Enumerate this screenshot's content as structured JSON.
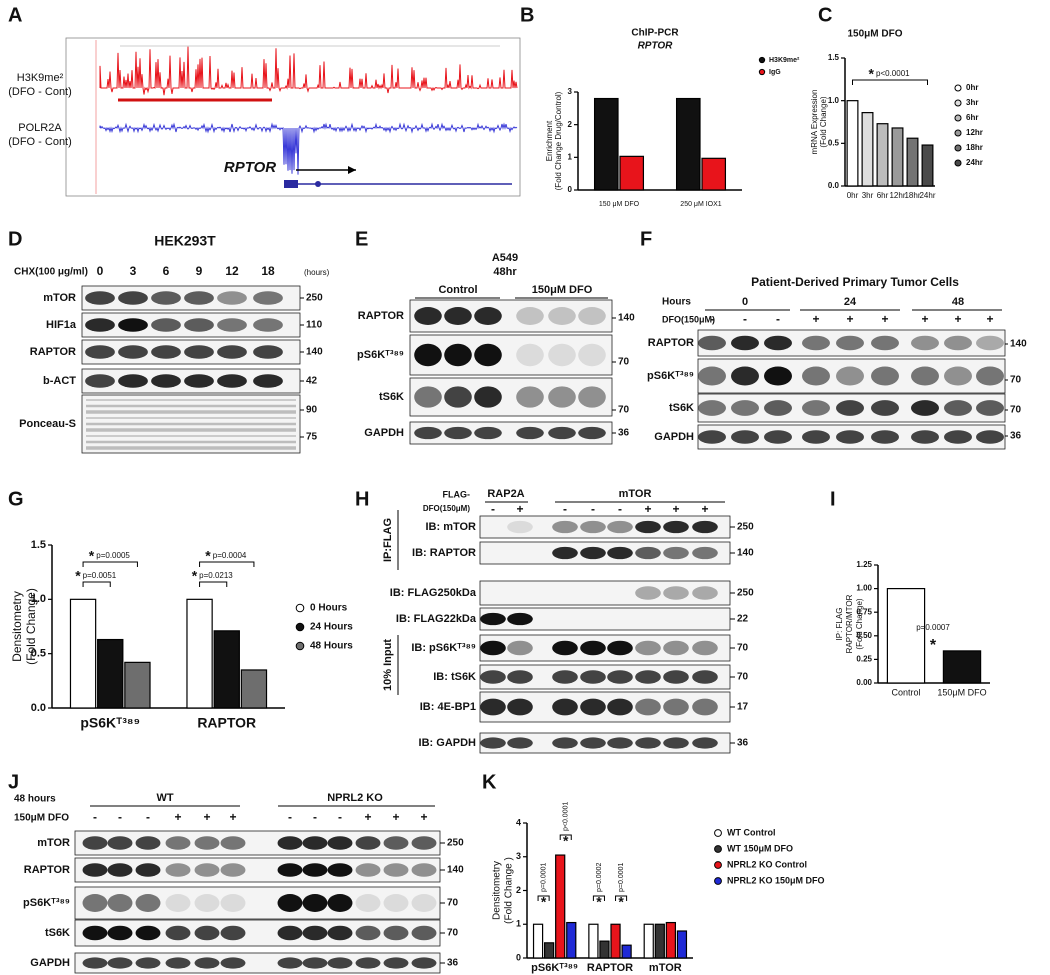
{
  "figure": {
    "panel_letters": [
      "A",
      "B",
      "C",
      "D",
      "E",
      "F",
      "G",
      "H",
      "I",
      "J",
      "K"
    ]
  },
  "track": {
    "tracks": [
      {
        "name": "H3K9me²",
        "sub": "(DFO - Cont)"
      },
      {
        "name": "POLR2A",
        "sub": "(DFO - Cont)"
      }
    ],
    "gene": "RPTOR"
  },
  "blots": [
    {
      "panel": "D",
      "header": [
        "HEK293T",
        "CHX(100 μg/ml)",
        "(hours)"
      ],
      "groups": [],
      "lanes": [
        0,
        3,
        6,
        9,
        12,
        18
      ],
      "rows": [
        "mTOR",
        "HIF1a",
        "RAPTOR",
        "b-ACT",
        "Ponceau-S"
      ],
      "mw": [
        250,
        110,
        140,
        42,
        90,
        75
      ],
      "side": []
    },
    {
      "panel": "E",
      "header": [
        "A549",
        "48hr"
      ],
      "groups": [
        "Control",
        "150μM DFO"
      ],
      "lanes": [],
      "rows": [
        "RAPTOR",
        "pS6Kᵀ³⁸⁹",
        "tS6K",
        "GAPDH"
      ],
      "mw": [
        140,
        70,
        70,
        36
      ],
      "side": []
    },
    {
      "panel": "F",
      "header": [
        "Patient-Derived Primary Tumor Cells",
        "Hours",
        "DFO(150μM)"
      ],
      "groups": [
        0,
        24,
        48
      ],
      "lanes": [
        "-",
        "-",
        "-",
        "+",
        "+",
        "+",
        "+",
        "+",
        "+"
      ],
      "rows": [
        "RAPTOR",
        "pS6Kᵀ³⁸⁹",
        "tS6K",
        "GAPDH"
      ],
      "mw": [
        140,
        70,
        70,
        36
      ],
      "side": []
    },
    {
      "panel": "H",
      "header": [
        "FLAG-",
        "DFO(150μM)"
      ],
      "groups": [
        "RAP2A",
        "mTOR"
      ],
      "lanes": [
        "-",
        "+",
        "-",
        "-",
        "-",
        "+",
        "+",
        "+"
      ],
      "rows": [
        "IB: mTOR",
        "IB: RAPTOR",
        "IB: FLAG250kDa",
        "IB: FLAG22kDa",
        "IB: pS6Kᵀ³⁸⁹",
        "IB: tS6K",
        "IB: 4E-BP1",
        "IB: GAPDH"
      ],
      "mw": [
        250,
        140,
        250,
        22,
        70,
        70,
        17,
        36
      ],
      "side": [
        "IP:FLAG",
        "10% Input"
      ]
    },
    {
      "panel": "J",
      "header": [
        "48 hours",
        "150μM DFO"
      ],
      "groups": [
        "WT",
        "NPRL2 KO"
      ],
      "lanes": [
        "-",
        "-",
        "-",
        "+",
        "+",
        "+",
        "-",
        "-",
        "-",
        "+",
        "+",
        "+"
      ],
      "rows": [
        "mTOR",
        "RAPTOR",
        "pS6Kᵀ³⁸⁹",
        "tS6K",
        "GAPDH"
      ],
      "mw": [
        250,
        140,
        70,
        70,
        36
      ],
      "side": []
    }
  ],
  "chart_data": [
    {
      "type": "bar",
      "title": "ChIP-PCR",
      "subtitle": "RPTOR",
      "y_label": [
        "Enrichment",
        "(Fold Change Drug/Control)"
      ],
      "categories": [
        "150 μM DFO",
        "250 μM IOX1"
      ],
      "series": [
        {
          "name": "H3K9me²",
          "color": "#111111",
          "values": [
            2.8,
            2.8
          ]
        },
        {
          "name": "IgG",
          "color": "#e8141b",
          "values": [
            1.03,
            0.97
          ]
        }
      ],
      "ylim": [
        0,
        3
      ],
      "yticks": [
        0,
        1,
        2,
        3
      ],
      "legend": true,
      "annotations": [],
      "sig_mark": "*"
    },
    {
      "type": "bar",
      "title": "150μM DFO",
      "y_label": [
        "mRNA Expression",
        "(Fold Change)"
      ],
      "categories": [
        "0hr",
        "3hr",
        "6hr",
        "12hr",
        "18hr",
        "24hr"
      ],
      "values": [
        1.0,
        0.86,
        0.73,
        0.68,
        0.56,
        0.48
      ],
      "colors": [
        "#ffffff",
        "#dedede",
        "#bcbcbc",
        "#9a9a9a",
        "#737373",
        "#4a4a4a"
      ],
      "ylim": [
        0,
        1.5
      ],
      "yticks": [
        {
          "value": 0,
          "label": "0.0"
        },
        {
          "value": 0.5,
          "label": "0.5"
        },
        {
          "value": 1,
          "label": "1.0"
        },
        {
          "value": 1.5,
          "label": "1.5"
        }
      ],
      "legend": true,
      "annotations": [
        "p<0.0001"
      ],
      "sig_mark": "*"
    },
    {
      "type": "bar",
      "y_label": [
        "Densitometry",
        "(Fold Change)"
      ],
      "categories": [
        "pS6Kᵀ³⁸⁹",
        "RAPTOR"
      ],
      "series": [
        {
          "name": "0 Hours",
          "color": "#ffffff",
          "values": [
            1.0,
            1.0
          ]
        },
        {
          "name": "24 Hours",
          "color": "#111111",
          "values": [
            0.63,
            0.71
          ]
        },
        {
          "name": "48 Hours",
          "color": "#6e6e6e",
          "values": [
            0.42,
            0.35
          ]
        }
      ],
      "ylim": [
        0,
        1.5
      ],
      "yticks": [
        {
          "value": 0,
          "label": "0.0"
        },
        {
          "value": 0.5,
          "label": "0.5"
        },
        {
          "value": 1,
          "label": "1.0"
        },
        {
          "value": 1.5,
          "label": "1.5"
        }
      ],
      "legend": true,
      "annotations": [
        "p=0.0005",
        "p=0.0051",
        "p=0.0004",
        "p=0.0213"
      ],
      "sig_mark": "*"
    },
    {
      "type": "bar",
      "y_label": [
        "IP: FLAG",
        "RAPTOR/MTOR",
        "(Fold Change)"
      ],
      "categories": [
        "Control",
        "150μM DFO"
      ],
      "values": [
        1.0,
        0.34
      ],
      "colors": [
        "#ffffff",
        "#111111"
      ],
      "ylim": [
        0,
        1.25
      ],
      "yticks": [
        {
          "value": 0,
          "label": "0.00"
        },
        {
          "value": 0.25,
          "label": "0.25"
        },
        {
          "value": 0.5,
          "label": "0.50"
        },
        {
          "value": 0.75,
          "label": "0.75"
        },
        {
          "value": 1,
          "label": "1.00"
        },
        {
          "value": 1.25,
          "label": "1.25"
        }
      ],
      "legend": false,
      "annotations": [
        "p=0.0007"
      ],
      "sig_mark": "*"
    },
    {
      "type": "bar",
      "y_label": [
        "Densitometry",
        "(Fold Change )"
      ],
      "categories": [
        "pS6Kᵀ³⁸⁹",
        "RAPTOR",
        "mTOR"
      ],
      "series": [
        {
          "name": "WT Control",
          "color": "#ffffff",
          "values": [
            1.0,
            1.0,
            1.0
          ]
        },
        {
          "name": "WT 150μM DFO",
          "color": "#333333",
          "values": [
            0.45,
            0.5,
            1.0
          ]
        },
        {
          "name": "NPRL2 KO Control",
          "color": "#e8141b",
          "values": [
            3.05,
            1.0,
            1.05
          ]
        },
        {
          "name": "NPRL2 KO 150μM DFO",
          "color": "#1f2ad6",
          "values": [
            1.05,
            0.38,
            0.8
          ]
        }
      ],
      "ylim": [
        0,
        4
      ],
      "yticks": [
        0,
        1,
        2,
        3,
        4
      ],
      "legend": true,
      "annotations": [
        "p=0.0001",
        "p<0.0001",
        "p=0.0002",
        "p=0.0001"
      ],
      "sig_mark": "*"
    }
  ]
}
